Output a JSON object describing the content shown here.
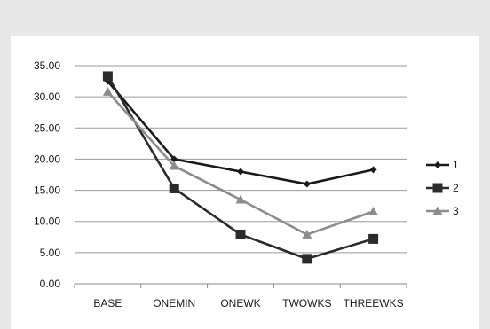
{
  "chart_data": {
    "type": "line",
    "title": "",
    "xlabel": "",
    "ylabel": "",
    "categories": [
      "BASE",
      "ONEMIN",
      "ONEWK",
      "TWOWKS",
      "THREEWKS"
    ],
    "ylim": [
      0,
      35
    ],
    "yticks": [
      "0.00",
      "5.00",
      "10.00",
      "15.00",
      "20.00",
      "25.00",
      "30.00",
      "35.00"
    ],
    "grid": true,
    "legend_position": "right",
    "series": [
      {
        "name": "1",
        "values": [
          32.5,
          20.0,
          18.0,
          16.0,
          18.3
        ],
        "marker": "diamond",
        "color": "#1a1a1a"
      },
      {
        "name": "2",
        "values": [
          33.3,
          15.3,
          7.9,
          4.0,
          7.2
        ],
        "marker": "square",
        "color": "#2b2b2b"
      },
      {
        "name": "3",
        "values": [
          30.8,
          18.9,
          13.5,
          7.9,
          11.6
        ],
        "marker": "triangle",
        "color": "#8c8c8c"
      }
    ]
  }
}
